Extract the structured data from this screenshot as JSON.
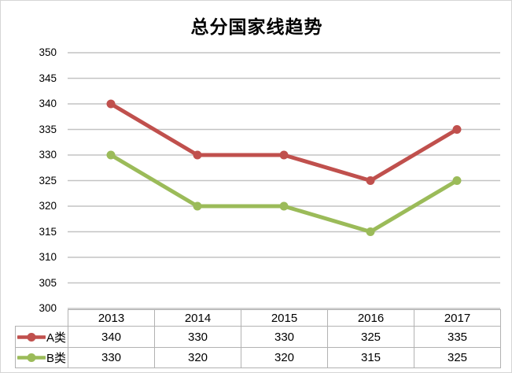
{
  "title": "总分国家线趋势",
  "colors": {
    "series_a": "#C0504D",
    "series_b": "#9BBB59",
    "gridline": "#C3C3C3",
    "table_border": "#B2B2B2",
    "outer_border": "#D5D5D5",
    "text": "#000000",
    "background": "#FFFFFF"
  },
  "chart_data": {
    "type": "line",
    "title": "总分国家线趋势",
    "categories": [
      "2013",
      "2014",
      "2015",
      "2016",
      "2017"
    ],
    "series": [
      {
        "name": "A类",
        "color": "#C0504D",
        "values": [
          340,
          330,
          330,
          325,
          335
        ]
      },
      {
        "name": "B类",
        "color": "#9BBB59",
        "values": [
          330,
          320,
          320,
          315,
          325
        ]
      }
    ],
    "ylabel": "",
    "xlabel": "",
    "ylim": [
      300,
      350
    ],
    "ytick_step": 5,
    "yticks": [
      350,
      345,
      340,
      335,
      330,
      325,
      320,
      315,
      310,
      305,
      300
    ],
    "grid": true,
    "marker": "circle",
    "legend_position": "data-table-left",
    "data_table_shown": true
  }
}
